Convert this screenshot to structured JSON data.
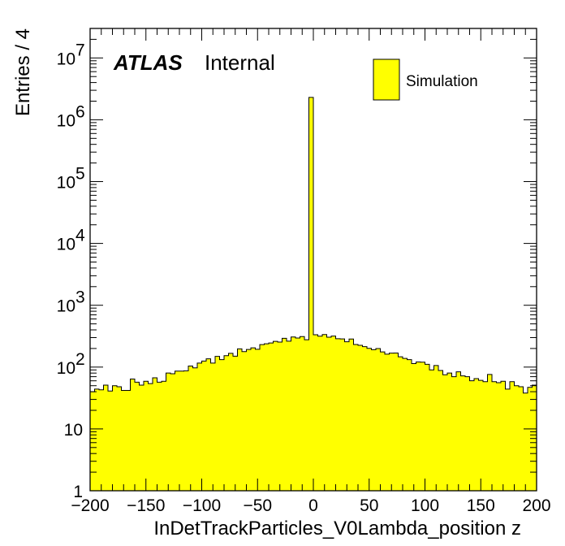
{
  "chart_data": {
    "type": "bar",
    "histogram": true,
    "xlabel": "InDetTrackParticles_V0Lambda_position z",
    "ylabel": "Entries / 4",
    "xlim": [
      -200,
      200
    ],
    "ylim": [
      1,
      30000000
    ],
    "yscale": "log",
    "bin_width": 4,
    "x_tick_labels": [
      "−200",
      "−150",
      "−100",
      "−50",
      "0",
      "50",
      "100",
      "150",
      "200"
    ],
    "x_tick_values": [
      -200,
      -150,
      -100,
      -50,
      0,
      50,
      100,
      150,
      200
    ],
    "y_tick_values": [
      1,
      10,
      100,
      1000,
      10000,
      100000,
      1000000,
      10000000
    ],
    "y_tick_labels": [
      {
        "base": "1",
        "exp": ""
      },
      {
        "base": "10",
        "exp": ""
      },
      {
        "base": "10",
        "exp": "2"
      },
      {
        "base": "10",
        "exp": "3"
      },
      {
        "base": "10",
        "exp": "4"
      },
      {
        "base": "10",
        "exp": "5"
      },
      {
        "base": "10",
        "exp": "6"
      },
      {
        "base": "10",
        "exp": "7"
      }
    ],
    "atlas_label": "ATLAS",
    "atlas_sublabel": "Internal",
    "legend": [
      {
        "name": "Simulation",
        "color": "#ffff00"
      }
    ],
    "legend_position": "top-right",
    "fill_color": "#ffff00",
    "line_color": "#000000",
    "series": [
      {
        "name": "Simulation",
        "x": [
          -198,
          -194,
          -190,
          -186,
          -182,
          -178,
          -174,
          -170,
          -166,
          -162,
          -158,
          -154,
          -150,
          -146,
          -142,
          -138,
          -134,
          -130,
          -126,
          -122,
          -118,
          -114,
          -110,
          -106,
          -102,
          -98,
          -94,
          -90,
          -86,
          -82,
          -78,
          -74,
          -70,
          -66,
          -62,
          -58,
          -54,
          -50,
          -46,
          -42,
          -38,
          -34,
          -30,
          -26,
          -22,
          -18,
          -14,
          -10,
          -6,
          -2,
          2,
          6,
          10,
          14,
          18,
          22,
          26,
          30,
          34,
          38,
          42,
          46,
          50,
          54,
          58,
          62,
          66,
          70,
          74,
          78,
          82,
          86,
          90,
          94,
          98,
          102,
          106,
          110,
          114,
          118,
          122,
          126,
          130,
          134,
          138,
          142,
          146,
          150,
          154,
          158,
          162,
          166,
          170,
          174,
          178,
          182,
          186,
          190,
          194,
          198
        ],
        "values": [
          40,
          44,
          43,
          51,
          41,
          50,
          48,
          42,
          42,
          64,
          57,
          51,
          59,
          54,
          67,
          57,
          59,
          80,
          78,
          86,
          86,
          87,
          104,
          97,
          116,
          125,
          136,
          116,
          149,
          132,
          153,
          167,
          150,
          197,
          178,
          193,
          205,
          194,
          231,
          238,
          245,
          261,
          254,
          292,
          263,
          307,
          296,
          311,
          277,
          2300000,
          333,
          316,
          336,
          304,
          317,
          288,
          286,
          257,
          284,
          232,
          225,
          214,
          201,
          191,
          199,
          176,
          162,
          168,
          169,
          147,
          138,
          132,
          114,
          121,
          120,
          111,
          90,
          106,
          88,
          75,
          80,
          70,
          84,
          72,
          70,
          60,
          65,
          61,
          58,
          76,
          58,
          56,
          59,
          44,
          58,
          50,
          48,
          38,
          47,
          51
        ]
      }
    ]
  }
}
